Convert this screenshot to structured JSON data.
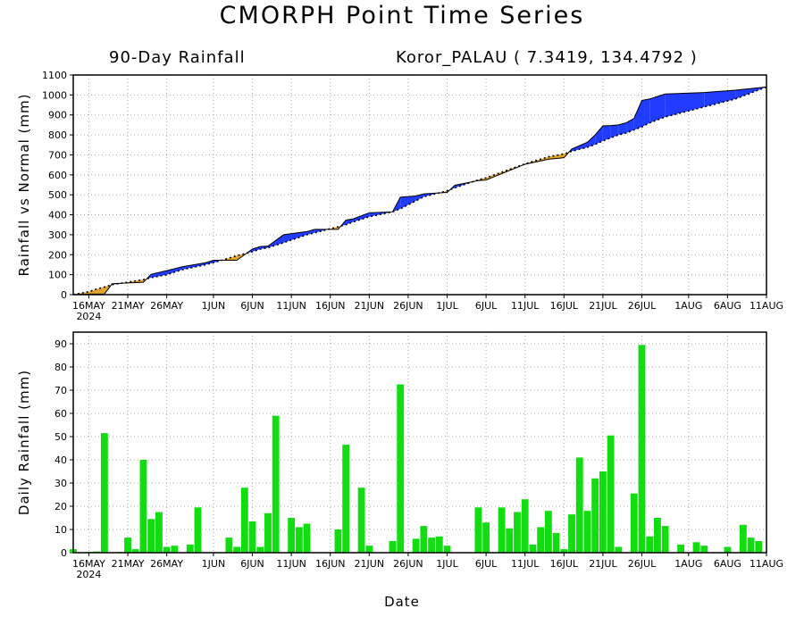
{
  "title": "CMORPH Point Time Series",
  "subtitle_left": "90-Day Rainfall",
  "subtitle_right": "Koror_PALAU ( 7.3419, 134.4792 )",
  "xlabel": "Date",
  "x_ticks": [
    "16MAY",
    "21MAY",
    "26MAY",
    "1JUN",
    "6JUN",
    "11JUN",
    "16JUN",
    "21JUN",
    "26JUN",
    "1JUL",
    "6JUL",
    "11JUL",
    "16JUL",
    "21JUL",
    "26JUL",
    "1AUG",
    "6AUG",
    "11AUG"
  ],
  "x_year": "2024",
  "colors": {
    "above_normal": "#1f3cff",
    "below_normal": "#e4a22a",
    "daily_bar": "#11dd11",
    "grid": "#aaaaaa"
  },
  "chart_data": [
    {
      "type": "area",
      "title": "90-Day Rainfall",
      "ylabel": "Rainfall vs Normal (mm)",
      "ylim": [
        0,
        1100
      ],
      "yticks": [
        0,
        100,
        200,
        300,
        400,
        500,
        600,
        700,
        800,
        900,
        1000,
        1100
      ],
      "x_start": "2024-05-14",
      "x_end": "2024-08-11",
      "grid": true,
      "series": [
        {
          "name": "Observed",
          "x": [
            "2024-05-14",
            "2024-05-16",
            "2024-05-17",
            "2024-05-18",
            "2024-05-19",
            "2024-05-23",
            "2024-05-24",
            "2024-05-26",
            "2024-05-28",
            "2024-05-31",
            "2024-06-01",
            "2024-06-04",
            "2024-06-05",
            "2024-06-06",
            "2024-06-07",
            "2024-06-08",
            "2024-06-10",
            "2024-06-13",
            "2024-06-14",
            "2024-06-17",
            "2024-06-18",
            "2024-06-19",
            "2024-06-21",
            "2024-06-24",
            "2024-06-25",
            "2024-06-27",
            "2024-06-28",
            "2024-07-01",
            "2024-07-02",
            "2024-07-05",
            "2024-07-06",
            "2024-07-11",
            "2024-07-14",
            "2024-07-16",
            "2024-07-17",
            "2024-07-19",
            "2024-07-20",
            "2024-07-21",
            "2024-07-22",
            "2024-07-23",
            "2024-07-24",
            "2024-07-25",
            "2024-07-26",
            "2024-07-27",
            "2024-07-29",
            "2024-08-03",
            "2024-08-07",
            "2024-08-11"
          ],
          "values": [
            0,
            3,
            3,
            3,
            55,
            62,
            102,
            120,
            140,
            160,
            172,
            172,
            200,
            228,
            241,
            243,
            300,
            316,
            327,
            327,
            373,
            380,
            410,
            415,
            488,
            494,
            505,
            512,
            548,
            571,
            574,
            653,
            678,
            686,
            729,
            763,
            800,
            845,
            847,
            850,
            861,
            883,
            973,
            980,
            1005,
            1012,
            1024,
            1040
          ]
        },
        {
          "name": "Normal",
          "x": [
            "2024-05-14",
            "2024-05-16",
            "2024-05-17",
            "2024-05-18",
            "2024-05-19",
            "2024-05-23",
            "2024-05-24",
            "2024-05-26",
            "2024-05-28",
            "2024-05-31",
            "2024-06-01",
            "2024-06-04",
            "2024-06-05",
            "2024-06-06",
            "2024-06-07",
            "2024-06-08",
            "2024-06-10",
            "2024-06-13",
            "2024-06-14",
            "2024-06-17",
            "2024-06-18",
            "2024-06-19",
            "2024-06-21",
            "2024-06-24",
            "2024-06-25",
            "2024-06-27",
            "2024-06-28",
            "2024-07-01",
            "2024-07-02",
            "2024-07-05",
            "2024-07-06",
            "2024-07-11",
            "2024-07-14",
            "2024-07-16",
            "2024-07-17",
            "2024-07-19",
            "2024-07-20",
            "2024-07-21",
            "2024-07-22",
            "2024-07-23",
            "2024-07-24",
            "2024-07-25",
            "2024-07-26",
            "2024-07-27",
            "2024-07-29",
            "2024-08-03",
            "2024-08-07",
            "2024-08-11"
          ],
          "values": [
            0,
            15,
            28,
            38,
            50,
            75,
            85,
            100,
            125,
            150,
            160,
            195,
            205,
            215,
            228,
            235,
            260,
            300,
            310,
            340,
            350,
            365,
            390,
            415,
            430,
            470,
            490,
            520,
            535,
            575,
            585,
            655,
            690,
            705,
            718,
            738,
            752,
            770,
            785,
            800,
            810,
            825,
            840,
            860,
            890,
            940,
            980,
            1040
          ]
        }
      ]
    },
    {
      "type": "bar",
      "ylabel": "Daily Rainfall (mm)",
      "ylim": [
        0,
        95
      ],
      "yticks": [
        0,
        10,
        20,
        30,
        40,
        50,
        60,
        70,
        80,
        90
      ],
      "x_start": "2024-05-14",
      "grid": true,
      "values": [
        1.5,
        0,
        0.3,
        0.5,
        51.5,
        0,
        0.3,
        6.5,
        1.5,
        40,
        14.5,
        17.5,
        2.5,
        3,
        0,
        3.5,
        19.5,
        0,
        0,
        0,
        6.5,
        2.5,
        28,
        13.5,
        2.5,
        17,
        59,
        0,
        15,
        11,
        12.5,
        0,
        0,
        0,
        10,
        46.5,
        0,
        28,
        3,
        0,
        0,
        5,
        72.5,
        0,
        6,
        11.5,
        6.5,
        7,
        3,
        0,
        0,
        0,
        19.5,
        13,
        0,
        19.5,
        10.5,
        17.5,
        23,
        3.5,
        11,
        18,
        8.5,
        1.5,
        16.5,
        41,
        18,
        32,
        35,
        50.5,
        2.5,
        0,
        25.5,
        89.5,
        7,
        15,
        11.5,
        0,
        3.5,
        0,
        4.5,
        3,
        0,
        0,
        2.5,
        0,
        12,
        6.5,
        5,
        0
      ]
    }
  ]
}
